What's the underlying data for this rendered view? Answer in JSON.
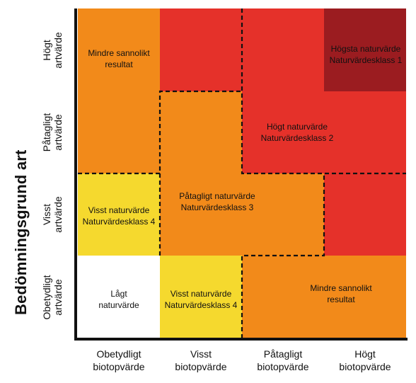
{
  "y_axis": {
    "title": "Bedömningsgrund art",
    "labels": [
      {
        "l1": "Högt",
        "l2": "artvärde"
      },
      {
        "l1": "Påtagligt",
        "l2": "artvärde"
      },
      {
        "l1": "Visst",
        "l2": "artvärde"
      },
      {
        "l1": "Obetydligt",
        "l2": "artvärde"
      }
    ]
  },
  "x_axis": {
    "labels": [
      {
        "l1": "Obetydligt",
        "l2": "biotopvärde"
      },
      {
        "l1": "Visst",
        "l2": "biotopvärde"
      },
      {
        "l1": "Påtagligt",
        "l2": "biotopvärde"
      },
      {
        "l1": "Högt",
        "l2": "biotopvärde"
      }
    ]
  },
  "colors": {
    "orange": "#f28a1a",
    "red": "#e5312a",
    "dark_red": "#9b1c20",
    "yellow": "#f5d92e",
    "white": "#ffffff",
    "border": "#111111"
  },
  "cells": [
    {
      "id": "less-likely-top-left",
      "l1": "Mindre sannolikt",
      "l2": "resultat"
    },
    {
      "id": "highest-value",
      "l1": "Högsta naturvärde",
      "l2": "Naturvärdesklass 1"
    },
    {
      "id": "high-value",
      "l1": "Högt naturvärde",
      "l2": "Naturvärdesklass 2"
    },
    {
      "id": "significant-value",
      "l1": "Påtagligt naturvärde",
      "l2": "Naturvärdesklass 3"
    },
    {
      "id": "some-value-left",
      "l1": "Visst naturvärde",
      "l2": "Naturvärdesklass 4"
    },
    {
      "id": "low-value",
      "l1": "Lågt",
      "l2": "naturvärde"
    },
    {
      "id": "some-value-bottom",
      "l1": "Visst naturvärde",
      "l2": "Naturvärdesklass 4"
    },
    {
      "id": "less-likely-bottom-right",
      "l1": "Mindre sannolikt",
      "l2": "resultat"
    }
  ]
}
